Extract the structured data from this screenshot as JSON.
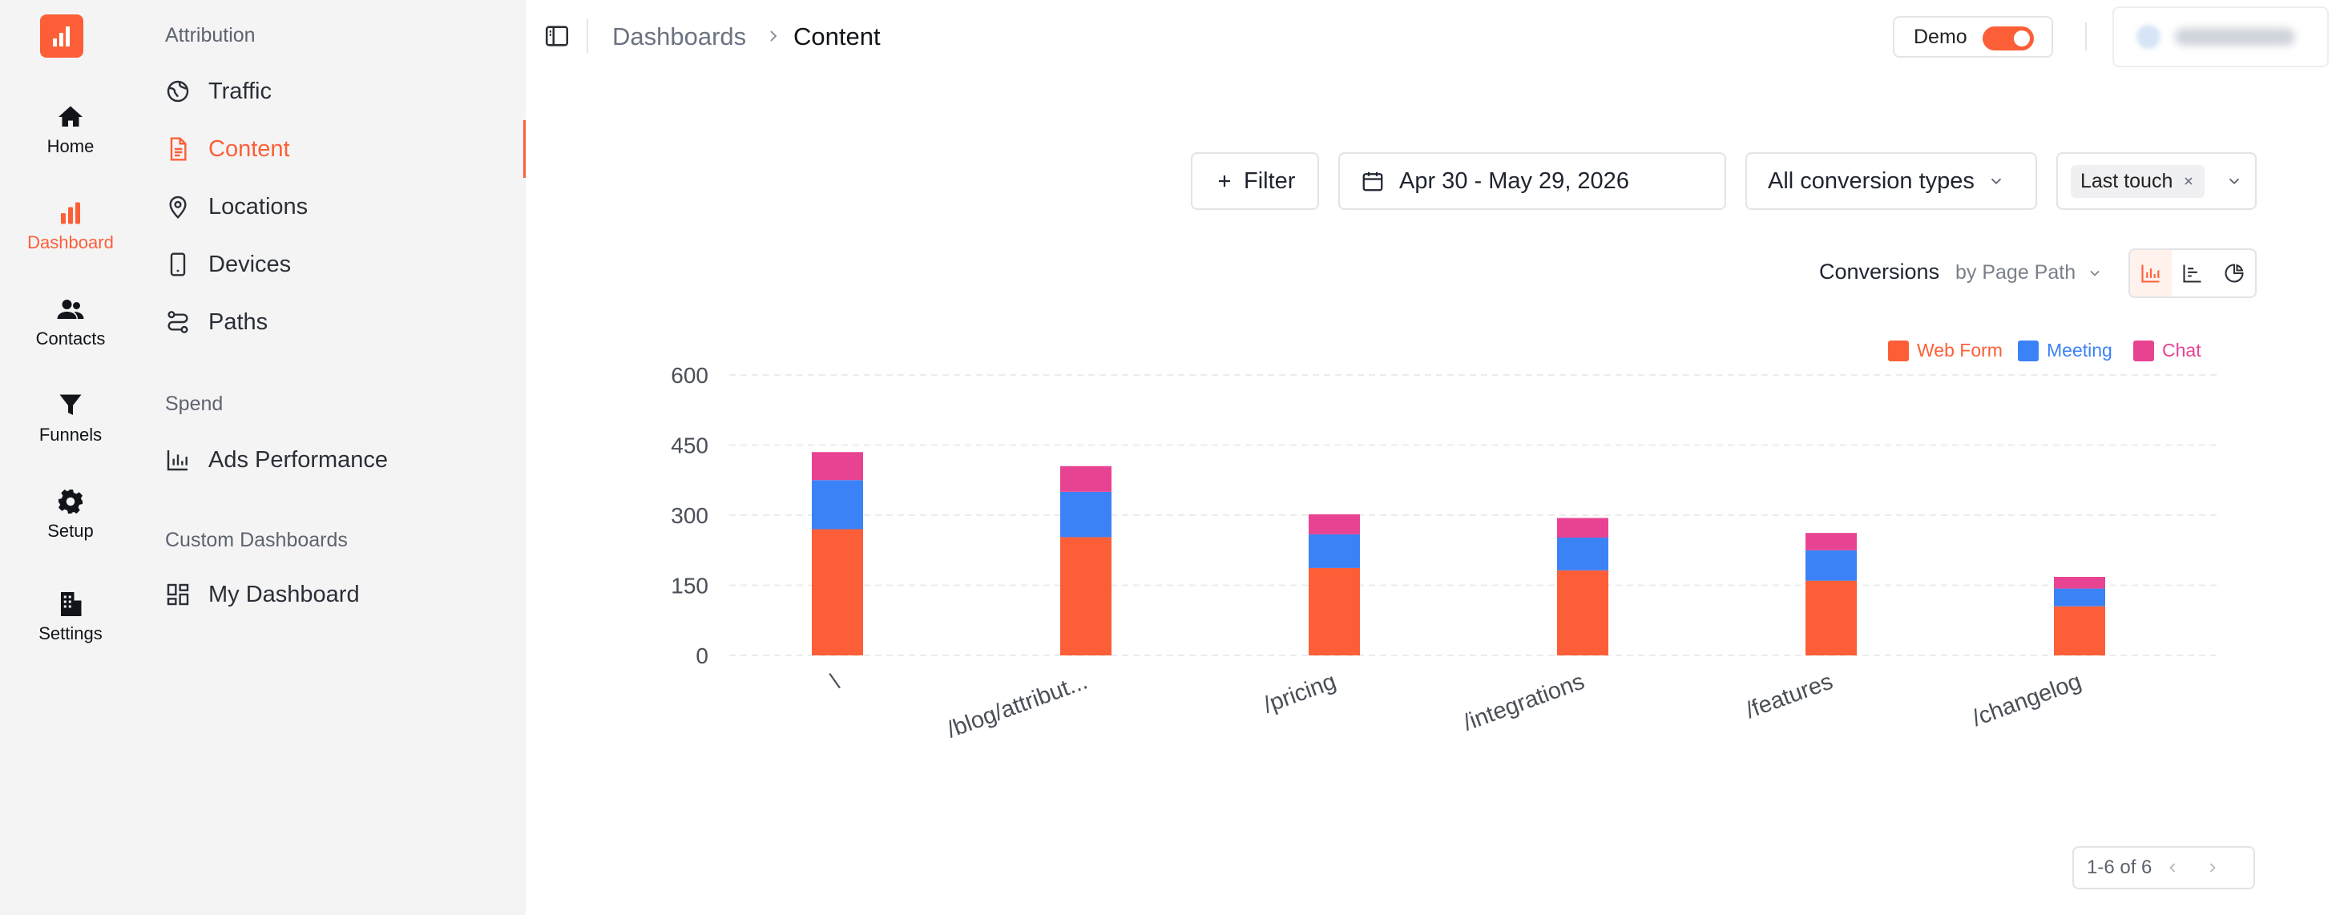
{
  "rail": {
    "items": [
      {
        "label": "Home",
        "icon": "home-icon"
      },
      {
        "label": "Dashboard",
        "icon": "bar-chart-icon",
        "active": true
      },
      {
        "label": "Contacts",
        "icon": "users-icon"
      },
      {
        "label": "Funnels",
        "icon": "funnel-icon"
      },
      {
        "label": "Setup",
        "icon": "gear-icon"
      },
      {
        "label": "Settings",
        "icon": "building-icon"
      }
    ]
  },
  "sidebar": {
    "sections": [
      {
        "title": "Attribution",
        "items": [
          {
            "label": "Traffic",
            "icon": "globe-icon"
          },
          {
            "label": "Content",
            "icon": "document-icon",
            "active": true
          },
          {
            "label": "Locations",
            "icon": "map-pin-icon"
          },
          {
            "label": "Devices",
            "icon": "phone-icon"
          },
          {
            "label": "Paths",
            "icon": "route-icon"
          }
        ]
      },
      {
        "title": "Spend",
        "items": [
          {
            "label": "Ads Performance",
            "icon": "bar-chart-outline-icon"
          }
        ]
      },
      {
        "title": "Custom Dashboards",
        "items": [
          {
            "label": "My Dashboard",
            "icon": "dashboard-grid-icon"
          }
        ]
      }
    ]
  },
  "header": {
    "breadcrumb": [
      "Dashboards",
      "Content"
    ],
    "demo_label": "Demo",
    "demo_enabled": true
  },
  "filters": {
    "filter_label": "Filter",
    "date_range": "Apr 30 - May 29, 2026",
    "conversion_types": "All conversion types",
    "model_chip": "Last touch"
  },
  "chart_header": {
    "title": "Conversions",
    "subtitle": "by Page Path"
  },
  "colors": {
    "accent": "#fc5f37",
    "web_form": "#fc5f37",
    "meeting": "#3b82f6",
    "chat": "#e84393"
  },
  "chart_data": {
    "type": "bar",
    "stacked": true,
    "categories": [
      "\\",
      "/blog/attribut...",
      "/pricing",
      "/integrations",
      "/features",
      "/changelog"
    ],
    "series": [
      {
        "name": "Web Form",
        "color": "#fc5f37",
        "values": [
          270,
          253,
          187,
          182,
          160,
          105
        ]
      },
      {
        "name": "Meeting",
        "color": "#3b82f6",
        "values": [
          105,
          97,
          72,
          70,
          65,
          38
        ]
      },
      {
        "name": "Chat",
        "color": "#e84393",
        "values": [
          60,
          55,
          43,
          42,
          37,
          25
        ]
      }
    ],
    "ylim": [
      0,
      600
    ],
    "yticks": [
      0,
      150,
      300,
      450,
      600
    ],
    "grid": true,
    "legend_position": "top-right"
  },
  "pagination": {
    "text": "1-6 of 6"
  }
}
